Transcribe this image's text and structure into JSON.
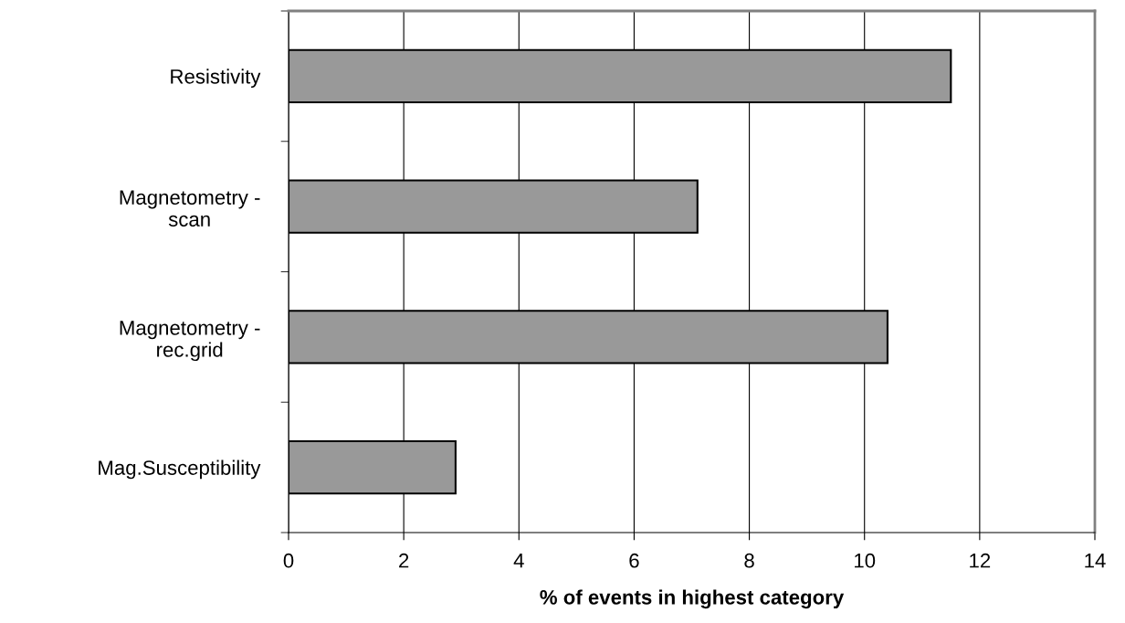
{
  "chart_data": {
    "type": "bar",
    "orientation": "horizontal",
    "xlabel": "% of events in highest category",
    "categories": [
      "Resistivity",
      "Magnetometry -\nscan",
      "Magnetometry -\nrec.grid",
      "Mag.Susceptibility"
    ],
    "values": [
      11.5,
      7.1,
      10.4,
      2.9
    ],
    "color": "#999999",
    "xlim": [
      0,
      14
    ],
    "xticks": [
      0,
      2,
      4,
      6,
      8,
      10,
      12,
      14
    ],
    "grid": "x"
  }
}
